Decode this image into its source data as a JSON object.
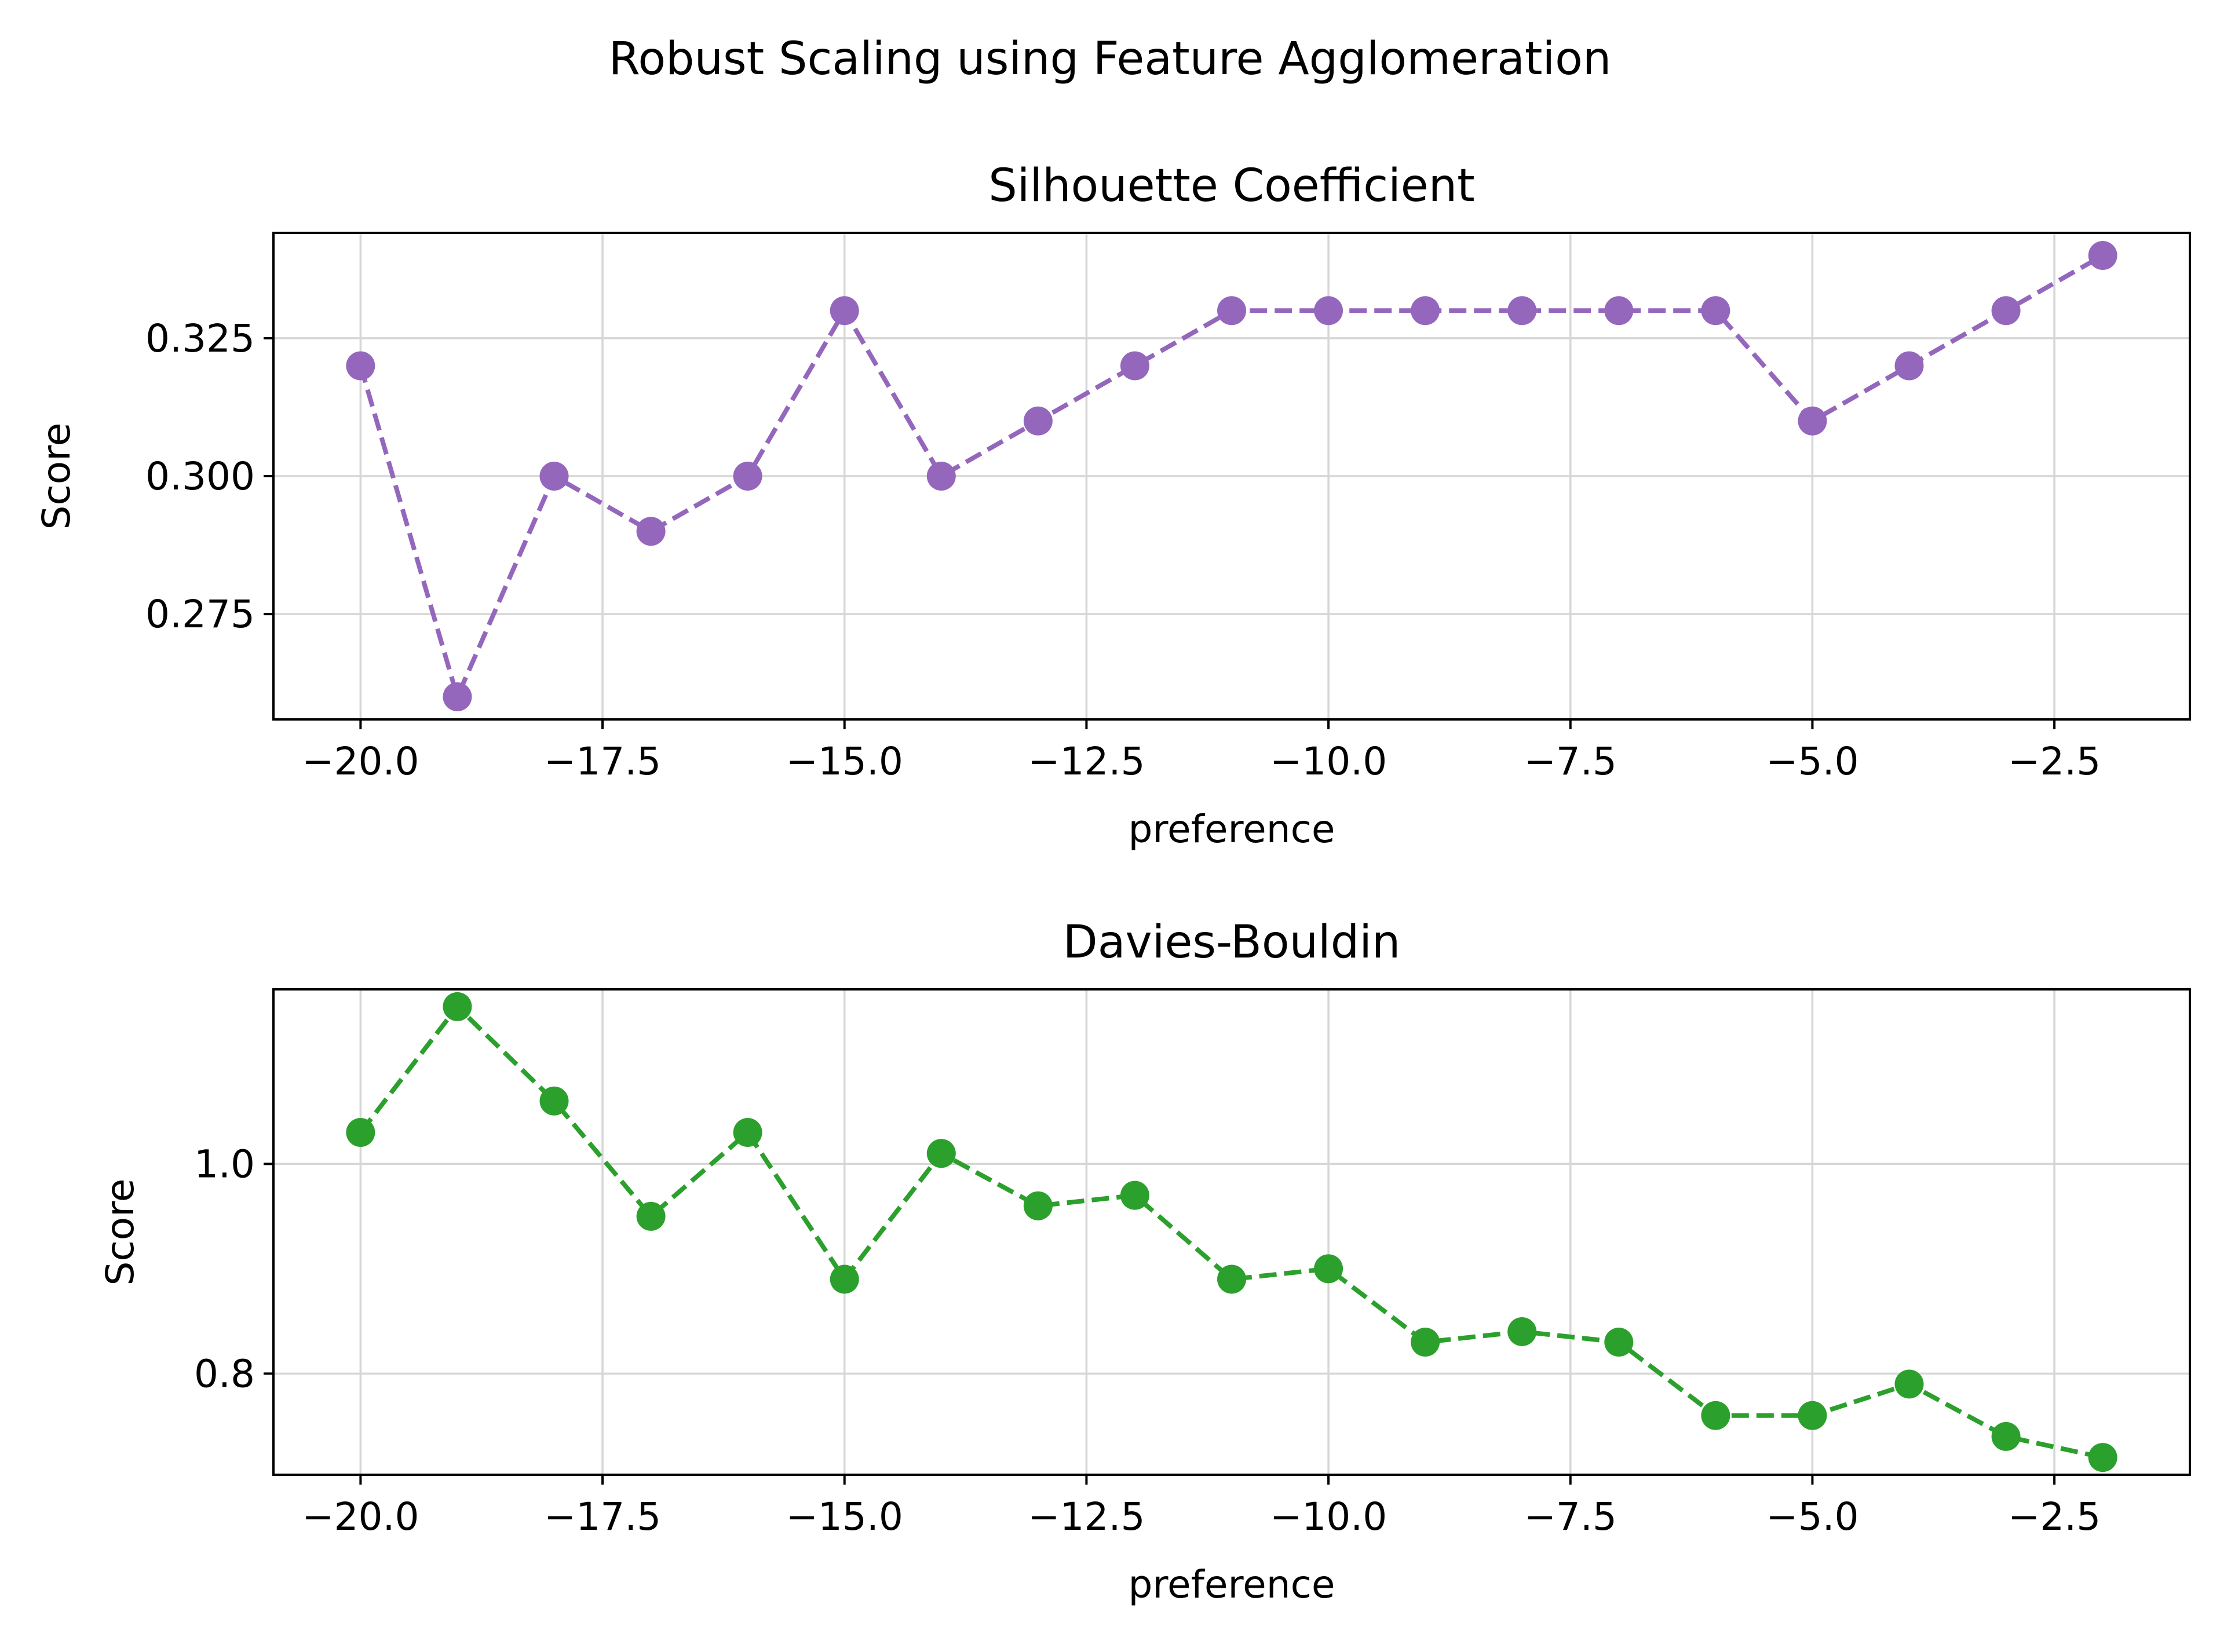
{
  "figure": {
    "suptitle": "Robust Scaling using Feature Agglomeration"
  },
  "chart_data": [
    {
      "type": "line",
      "title": "Silhouette Coefficient",
      "xlabel": "preference",
      "ylabel": "Score",
      "x": [
        -20,
        -19,
        -18,
        -17,
        -16,
        -15,
        -14,
        -13,
        -12,
        -11,
        -10,
        -9,
        -8,
        -7,
        -6,
        -5,
        -4,
        -3,
        -2
      ],
      "series": [
        {
          "values": [
            0.32,
            0.26,
            0.3,
            0.29,
            0.3,
            0.33,
            0.3,
            0.31,
            0.32,
            0.33,
            0.33,
            0.33,
            0.33,
            0.33,
            0.33,
            0.31,
            0.32,
            0.33,
            0.34
          ],
          "color": "#9467bd",
          "linestyle": "dashed",
          "marker": "circle"
        }
      ],
      "xlim": [
        -20.9,
        -1.1
      ],
      "ylim": [
        0.2559,
        0.3441
      ],
      "xticks": [
        -20.0,
        -17.5,
        -15.0,
        -12.5,
        -10.0,
        -7.5,
        -5.0,
        -2.5
      ],
      "xtick_labels": [
        "−20.0",
        "−17.5",
        "−15.0",
        "−12.5",
        "−10.0",
        "−7.5",
        "−5.0",
        "−2.5"
      ],
      "yticks": [
        0.275,
        0.3,
        0.325
      ],
      "ytick_labels": [
        "0.275",
        "0.300",
        "0.325"
      ],
      "grid": true
    },
    {
      "type": "line",
      "title": "Davies-Bouldin",
      "xlabel": "preference",
      "ylabel": "Score",
      "x": [
        -20,
        -19,
        -18,
        -17,
        -16,
        -15,
        -14,
        -13,
        -12,
        -11,
        -10,
        -9,
        -8,
        -7,
        -6,
        -5,
        -4,
        -3,
        -2
      ],
      "series": [
        {
          "values": [
            1.03,
            1.15,
            1.06,
            0.95,
            1.03,
            0.89,
            1.01,
            0.96,
            0.97,
            0.89,
            0.9,
            0.83,
            0.84,
            0.83,
            0.76,
            0.76,
            0.79,
            0.74,
            0.72
          ],
          "color": "#2ca02c",
          "linestyle": "dashed",
          "marker": "circle"
        }
      ],
      "xlim": [
        -20.9,
        -1.1
      ],
      "ylim": [
        0.7035,
        1.1665
      ],
      "xticks": [
        -20.0,
        -17.5,
        -15.0,
        -12.5,
        -10.0,
        -7.5,
        -5.0,
        -2.5
      ],
      "xtick_labels": [
        "−20.0",
        "−17.5",
        "−15.0",
        "−12.5",
        "−10.0",
        "−7.5",
        "−5.0",
        "−2.5"
      ],
      "yticks": [
        0.8,
        1.0
      ],
      "ytick_labels": [
        "0.8",
        "1.0"
      ],
      "grid": true
    }
  ]
}
